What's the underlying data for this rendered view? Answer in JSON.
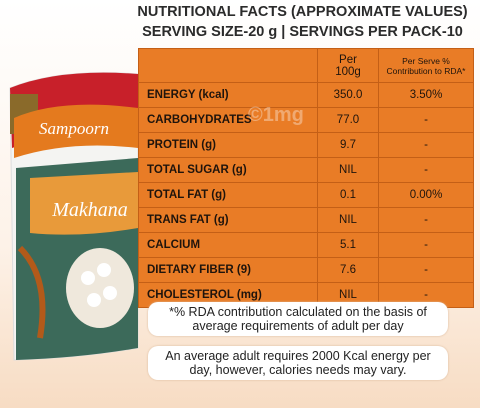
{
  "header": {
    "lines": [
      "NUTRITIONAL FACTS (APPROXIMATE VALUES)",
      "SERVING SIZE-20 g | SERVINGS PER PACK-10"
    ]
  },
  "product": {
    "brand": "Sampoorn",
    "name": "Makhana"
  },
  "watermark": "©1mg",
  "table": {
    "head": [
      [
        "Per",
        "100g"
      ],
      [
        "Per Serve %",
        "Contribution to RDA*"
      ]
    ],
    "rows": [
      [
        "ENERGY (kcal)",
        "350.0",
        "3.50%"
      ],
      [
        "CARBOHYDRATES",
        "77.0",
        "-"
      ],
      [
        "PROTEIN (g)",
        "9.7",
        "-"
      ],
      [
        "TOTAL SUGAR (g)",
        "NIL",
        "-"
      ],
      [
        "TOTAL FAT (g)",
        "0.1",
        "0.00%"
      ],
      [
        "TRANS FAT (g)",
        "NIL",
        "-"
      ],
      [
        "CALCIUM",
        "5.1",
        "-"
      ],
      [
        "DIETARY FIBER (9)",
        "7.6",
        "-"
      ],
      [
        "CHOLESTEROL (mg)",
        "NIL",
        "-"
      ]
    ]
  },
  "notes": [
    [
      "*% RDA contribution calculated on the basis of",
      "average requirements of adult per day"
    ],
    [
      "An average adult requires 2000 Kcal energy per",
      "day, however, calories needs may vary."
    ]
  ]
}
